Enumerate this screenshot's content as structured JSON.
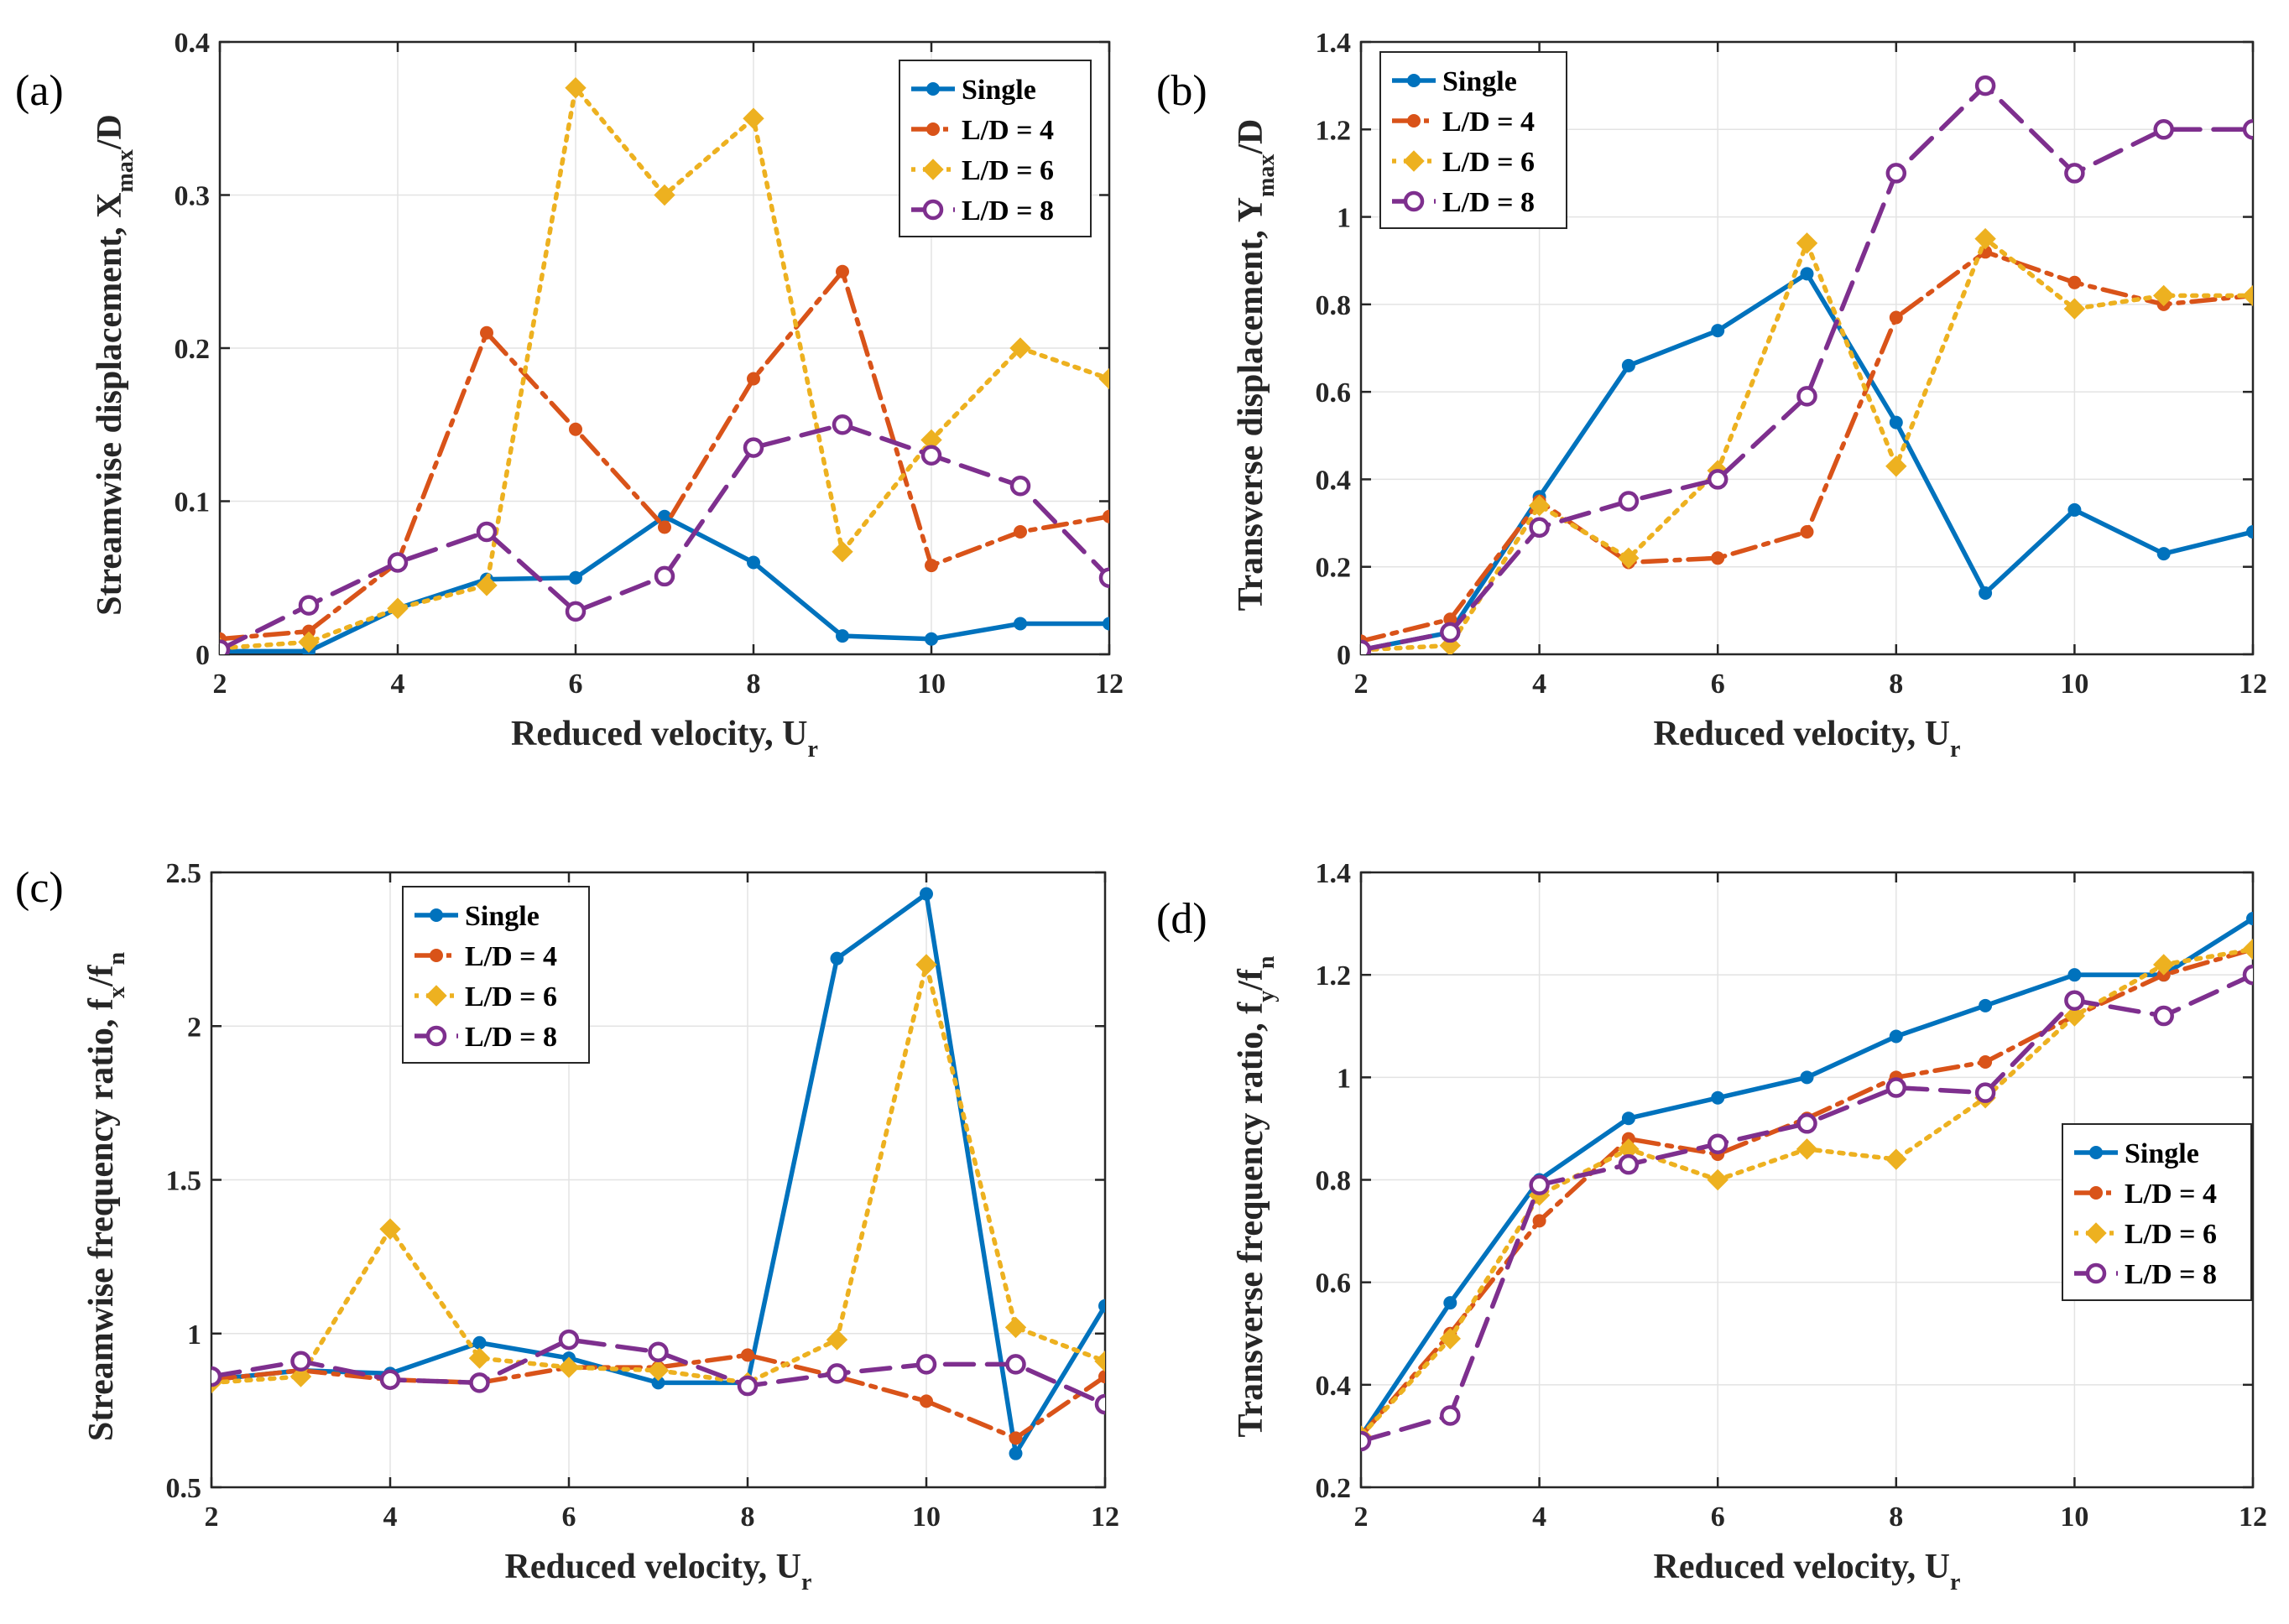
{
  "figure": {
    "title": ""
  },
  "chart_data": [
    {
      "type": "line",
      "panel_label": "(a)",
      "title": "",
      "xlabel": "Reduced velocity, U",
      "xlabel_sub": "r",
      "ylabel": "Streamwise displacement, X",
      "ylabel_sub": "max",
      "ylabel_tail": "/D",
      "xlim": [
        2,
        12
      ],
      "ylim": [
        0,
        0.4
      ],
      "xticks": [
        "2",
        "4",
        "6",
        "8",
        "10",
        "12"
      ],
      "yticks": [
        "0",
        "0.1",
        "0.2",
        "0.3",
        "0.4"
      ],
      "grid": true,
      "legend_position": "top-right",
      "x": [
        2,
        3,
        4,
        5,
        6,
        7,
        8,
        9,
        10,
        11,
        12
      ],
      "series": [
        {
          "name": "Single",
          "values": [
            0.002,
            0.002,
            0.03,
            0.049,
            0.05,
            0.09,
            0.06,
            0.012,
            0.01,
            0.02,
            0.02
          ]
        },
        {
          "name": "L/D = 4",
          "values": [
            0.01,
            0.015,
            0.06,
            0.21,
            0.147,
            0.083,
            0.18,
            0.25,
            0.058,
            0.08,
            0.09
          ]
        },
        {
          "name": "L/D = 6",
          "values": [
            0.004,
            0.008,
            0.03,
            0.045,
            0.37,
            0.3,
            0.35,
            0.067,
            0.14,
            0.2,
            0.18
          ]
        },
        {
          "name": "L/D = 8",
          "values": [
            0.003,
            0.032,
            0.06,
            0.08,
            0.028,
            0.051,
            0.135,
            0.15,
            0.13,
            0.11,
            0.05
          ]
        }
      ]
    },
    {
      "type": "line",
      "panel_label": "(b)",
      "title": "",
      "xlabel": "Reduced velocity, U",
      "xlabel_sub": "r",
      "ylabel": "Transverse displacement, Y",
      "ylabel_sub": "max",
      "ylabel_tail": "/D",
      "xlim": [
        2,
        12
      ],
      "ylim": [
        0,
        1.4
      ],
      "xticks": [
        "2",
        "4",
        "6",
        "8",
        "10",
        "12"
      ],
      "yticks": [
        "0",
        "0.2",
        "0.4",
        "0.6",
        "0.8",
        "1",
        "1.2",
        "1.4"
      ],
      "grid": true,
      "legend_position": "top-left",
      "x": [
        2,
        3,
        4,
        5,
        6,
        7,
        8,
        9,
        10,
        11,
        12
      ],
      "series": [
        {
          "name": "Single",
          "values": [
            0.01,
            0.05,
            0.36,
            0.66,
            0.74,
            0.87,
            0.53,
            0.14,
            0.33,
            0.23,
            0.28
          ]
        },
        {
          "name": "L/D = 4",
          "values": [
            0.03,
            0.08,
            0.35,
            0.21,
            0.22,
            0.28,
            0.77,
            0.92,
            0.85,
            0.8,
            0.82
          ]
        },
        {
          "name": "L/D = 6",
          "values": [
            0.01,
            0.02,
            0.34,
            0.22,
            0.42,
            0.94,
            0.43,
            0.95,
            0.79,
            0.82,
            0.82
          ]
        },
        {
          "name": "L/D = 8",
          "values": [
            0.01,
            0.05,
            0.29,
            0.35,
            0.4,
            0.59,
            1.1,
            1.3,
            1.1,
            1.2,
            1.2
          ]
        }
      ]
    },
    {
      "type": "line",
      "panel_label": "(c)",
      "title": "",
      "xlabel": "Reduced velocity, U",
      "xlabel_sub": "r",
      "ylabel": "Streamwise frequency ratio, f",
      "ylabel_sub": "x",
      "ylabel_tail": "/f",
      "ylabel_sub2": "n",
      "xlim": [
        2,
        12
      ],
      "ylim": [
        0.5,
        2.5
      ],
      "xticks": [
        "2",
        "4",
        "6",
        "8",
        "10",
        "12"
      ],
      "yticks": [
        "0.5",
        "1",
        "1.5",
        "2",
        "2.5"
      ],
      "grid": true,
      "legend_position": "top-center",
      "x": [
        2,
        3,
        4,
        5,
        6,
        7,
        8,
        9,
        10,
        11,
        12
      ],
      "series": [
        {
          "name": "Single",
          "values": [
            0.85,
            0.88,
            0.87,
            0.97,
            0.92,
            0.84,
            0.84,
            2.22,
            2.43,
            0.61,
            1.09
          ]
        },
        {
          "name": "L/D = 4",
          "values": [
            0.85,
            0.88,
            0.85,
            0.84,
            0.89,
            0.89,
            0.93,
            0.86,
            0.78,
            0.66,
            0.86
          ]
        },
        {
          "name": "L/D = 6",
          "values": [
            0.84,
            0.86,
            1.34,
            0.92,
            0.89,
            0.88,
            0.84,
            0.98,
            2.2,
            1.02,
            0.91
          ]
        },
        {
          "name": "L/D = 8",
          "values": [
            0.86,
            0.91,
            0.85,
            0.84,
            0.98,
            0.94,
            0.83,
            0.87,
            0.9,
            0.9,
            0.77
          ]
        }
      ]
    },
    {
      "type": "line",
      "panel_label": "(d)",
      "title": "",
      "xlabel": "Reduced velocity, U",
      "xlabel_sub": "r",
      "ylabel": "Transverse frequency ratio, f",
      "ylabel_sub": "y",
      "ylabel_tail": "/f",
      "ylabel_sub2": "n",
      "xlim": [
        2,
        12
      ],
      "ylim": [
        0.2,
        1.4
      ],
      "xticks": [
        "2",
        "4",
        "6",
        "8",
        "10",
        "12"
      ],
      "yticks": [
        "0.2",
        "0.4",
        "0.6",
        "0.8",
        "1",
        "1.2",
        "1.4"
      ],
      "grid": true,
      "legend_position": "bottom-right",
      "x": [
        2,
        3,
        4,
        5,
        6,
        7,
        8,
        9,
        10,
        11,
        12
      ],
      "series": [
        {
          "name": "Single",
          "values": [
            0.3,
            0.56,
            0.8,
            0.92,
            0.96,
            1.0,
            1.08,
            1.14,
            1.2,
            1.2,
            1.31
          ]
        },
        {
          "name": "L/D = 4",
          "values": [
            0.3,
            0.5,
            0.72,
            0.88,
            0.85,
            0.92,
            1.0,
            1.03,
            1.12,
            1.2,
            1.25
          ]
        },
        {
          "name": "L/D = 6",
          "values": [
            0.3,
            0.49,
            0.77,
            0.86,
            0.8,
            0.86,
            0.84,
            0.96,
            1.12,
            1.22,
            1.25
          ]
        },
        {
          "name": "L/D = 8",
          "values": [
            0.29,
            0.34,
            0.79,
            0.83,
            0.87,
            0.91,
            0.98,
            0.97,
            1.15,
            1.12,
            1.2
          ]
        }
      ]
    }
  ],
  "series_styles": [
    {
      "color": "#0072BD",
      "dash": "",
      "marker": "dot-filled"
    },
    {
      "color": "#D95319",
      "dash": "28 10 6 10",
      "marker": "dot-filled"
    },
    {
      "color": "#EDB120",
      "dash": "5 9",
      "marker": "diamond-filled"
    },
    {
      "color": "#7E2F8E",
      "dash": "34 16",
      "marker": "circle-open"
    }
  ]
}
